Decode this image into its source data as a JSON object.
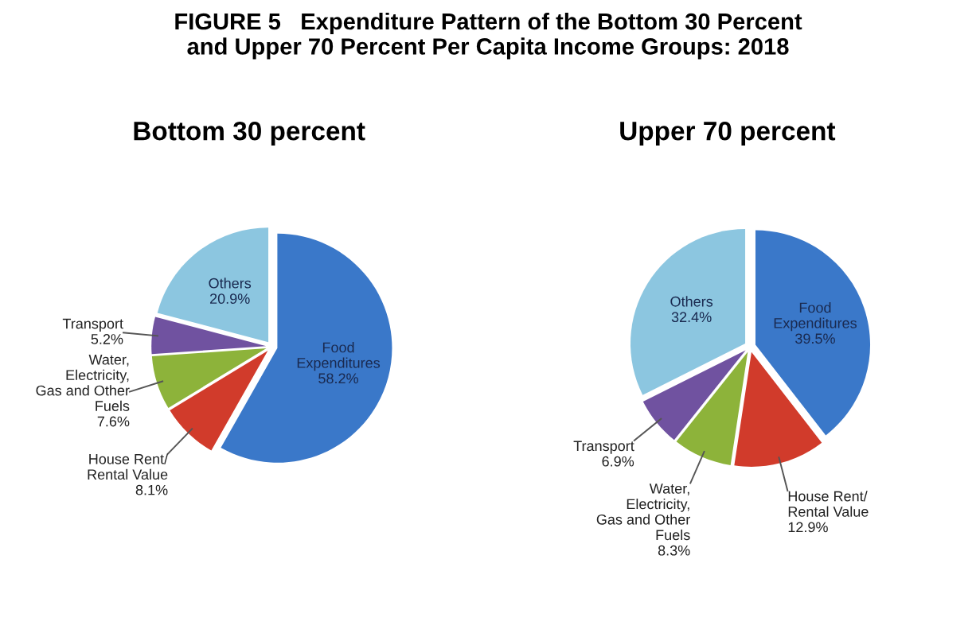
{
  "chart_data": [
    {
      "type": "pie",
      "title": "Bottom 30 percent",
      "annotations": [
        "FIGURE 5   Expenditure Pattern of the Bottom 30 Percent\nand Upper 70 Percent Per Capita Income Groups: 2018"
      ],
      "categories": [
        "Food\nExpenditures",
        "House Rent/\nRental Value",
        "Water,\nElectricity,\nGas and Other\nFuels",
        "Transport",
        "Others"
      ],
      "values": [
        58.2,
        8.1,
        7.6,
        5.2,
        20.9
      ],
      "value_labels": [
        "58.2%",
        "8.1%",
        "7.6%",
        "5.2%",
        "20.9%"
      ],
      "colors": [
        "#3a78c9",
        "#d13b2b",
        "#8db33a",
        "#7052a0",
        "#8cc6e0"
      ]
    },
    {
      "type": "pie",
      "title": "Upper 70 percent",
      "categories": [
        "Food\nExpenditures",
        "House Rent/\nRental Value",
        "Water,\nElectricity,\nGas and Other\nFuels",
        "Transport",
        "Others"
      ],
      "values": [
        39.5,
        12.9,
        8.3,
        6.9,
        32.4
      ],
      "value_labels": [
        "39.5%",
        "12.9%",
        "8.3%",
        "6.9%",
        "32.4%"
      ],
      "colors": [
        "#3a78c9",
        "#d13b2b",
        "#8db33a",
        "#7052a0",
        "#8cc6e0"
      ]
    }
  ]
}
